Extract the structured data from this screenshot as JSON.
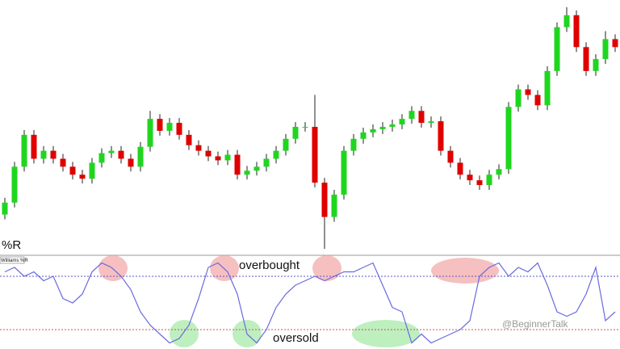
{
  "chart_data": [
    {
      "type": "candlestick",
      "up_color": "#1fd61f",
      "down_color": "#e00000",
      "wick_color": "#222222",
      "ylim": [
        0,
        310
      ],
      "open": [
        45,
        60,
        105,
        145,
        115,
        125,
        115,
        105,
        95,
        90,
        110,
        122,
        125,
        115,
        105,
        130,
        165,
        150,
        160,
        145,
        132,
        125,
        118,
        113,
        120,
        95,
        100,
        105,
        115,
        125,
        140,
        155,
        155,
        85,
        42,
        70,
        125,
        140,
        148,
        152,
        155,
        158,
        165,
        175,
        160,
        162,
        125,
        110,
        95,
        88,
        82,
        95,
        102,
        180,
        202,
        195,
        182,
        225,
        280,
        295,
        255,
        225,
        240,
        265
      ],
      "high": [
        66,
        111,
        151,
        151,
        131,
        131,
        121,
        111,
        101,
        116,
        128,
        131,
        131,
        121,
        136,
        175,
        171,
        166,
        166,
        151,
        138,
        131,
        124,
        126,
        126,
        106,
        111,
        121,
        131,
        146,
        161,
        161,
        195,
        91,
        76,
        131,
        146,
        154,
        158,
        161,
        164,
        171,
        181,
        181,
        168,
        168,
        131,
        116,
        101,
        94,
        101,
        108,
        186,
        208,
        208,
        201,
        231,
        286,
        305,
        301,
        261,
        246,
        275,
        271
      ],
      "low": [
        39,
        54,
        99,
        109,
        109,
        109,
        99,
        89,
        84,
        84,
        104,
        116,
        109,
        99,
        99,
        124,
        144,
        144,
        139,
        126,
        119,
        112,
        107,
        107,
        89,
        89,
        94,
        99,
        109,
        119,
        134,
        149,
        79,
        2,
        36,
        64,
        119,
        134,
        142,
        146,
        149,
        152,
        159,
        154,
        154,
        119,
        104,
        89,
        82,
        76,
        76,
        89,
        96,
        174,
        189,
        176,
        176,
        219,
        274,
        249,
        219,
        219,
        234,
        249
      ],
      "close": [
        60,
        105,
        145,
        115,
        125,
        115,
        105,
        95,
        90,
        110,
        122,
        125,
        115,
        105,
        130,
        165,
        150,
        160,
        145,
        132,
        125,
        118,
        113,
        120,
        95,
        100,
        105,
        115,
        125,
        140,
        155,
        155,
        85,
        42,
        70,
        125,
        140,
        148,
        152,
        155,
        158,
        165,
        175,
        160,
        162,
        125,
        110,
        95,
        88,
        82,
        95,
        102,
        180,
        202,
        195,
        182,
        225,
        280,
        295,
        255,
        225,
        240,
        265,
        255
      ]
    },
    {
      "type": "line",
      "title": "%R",
      "label": "Williams %R",
      "color": "#6a6ae0",
      "ylim": [
        -100,
        0
      ],
      "levels": [
        {
          "value": -20,
          "color": "#5555cc"
        },
        {
          "value": -80,
          "color": "#cc5555"
        }
      ],
      "annotations": [
        "overbought",
        "oversold"
      ],
      "watermark": "@BeginnerTalk",
      "values": [
        -15,
        -10,
        -20,
        -15,
        -25,
        -20,
        -45,
        -50,
        -40,
        -15,
        -5,
        -10,
        -20,
        -35,
        -60,
        -75,
        -85,
        -95,
        -90,
        -75,
        -45,
        -10,
        -5,
        -15,
        -40,
        -85,
        -95,
        -80,
        -55,
        -40,
        -30,
        -25,
        -20,
        -25,
        -20,
        -15,
        -15,
        -10,
        -5,
        -30,
        -55,
        -60,
        -95,
        -85,
        -95,
        -90,
        -85,
        -80,
        -70,
        -20,
        -10,
        -5,
        -20,
        -10,
        -15,
        -5,
        -30,
        -60,
        -65,
        -60,
        -40,
        -10,
        -70,
        -60
      ]
    }
  ]
}
